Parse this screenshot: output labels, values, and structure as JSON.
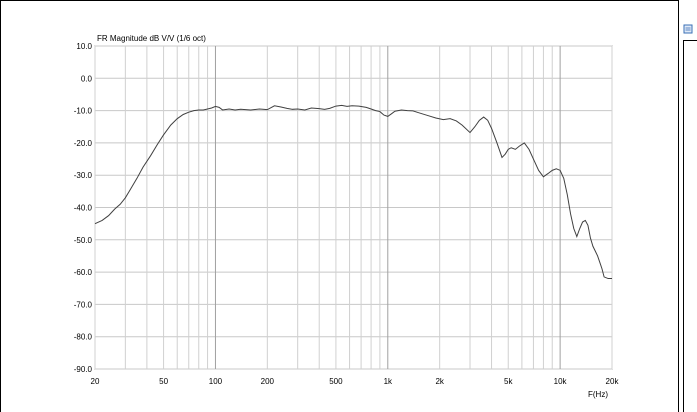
{
  "chart_data": {
    "type": "line",
    "title": "FR Magnitude dB V/V (1/6 oct)",
    "xlabel": "F(Hz)",
    "ylabel": "",
    "x_scale": "log",
    "xlim": [
      20,
      20000
    ],
    "ylim": [
      -90,
      10
    ],
    "grid": true,
    "x_ticks": [
      20,
      50,
      100,
      200,
      500,
      1000,
      2000,
      5000,
      10000,
      20000
    ],
    "x_tick_labels": [
      "20",
      "50",
      "100",
      "200",
      "500",
      "1k",
      "2k",
      "5k",
      "10k",
      "20k"
    ],
    "y_ticks": [
      10,
      0,
      -10,
      -20,
      -30,
      -40,
      -50,
      -60,
      -70,
      -80,
      -90
    ],
    "y_tick_labels": [
      "10.0",
      "0.0",
      "-10.0",
      "-20.0",
      "-30.0",
      "-40.0",
      "-50.0",
      "-60.0",
      "-70.0",
      "-80.0",
      "-90.0"
    ],
    "series": [
      {
        "color": "#404040",
        "x": [
          20,
          22,
          24,
          26,
          28,
          30,
          32,
          35,
          38,
          42,
          46,
          50,
          55,
          60,
          65,
          70,
          75,
          80,
          85,
          90,
          95,
          100,
          105,
          110,
          120,
          130,
          140,
          160,
          180,
          200,
          220,
          240,
          260,
          280,
          300,
          330,
          360,
          400,
          430,
          460,
          500,
          540,
          580,
          620,
          680,
          750,
          800,
          850,
          900,
          950,
          1000,
          1050,
          1100,
          1200,
          1300,
          1400,
          1500,
          1700,
          1900,
          2100,
          2300,
          2500,
          2700,
          3000,
          3200,
          3400,
          3600,
          3800,
          4000,
          4300,
          4600,
          4800,
          5000,
          5200,
          5500,
          5800,
          6200,
          6600,
          7000,
          7500,
          8000,
          8500,
          9000,
          9500,
          10000,
          10500,
          11000,
          11500,
          12000,
          12500,
          13000,
          13500,
          14000,
          14500,
          15000,
          15500,
          16000,
          16500,
          17000,
          17500,
          18000,
          19000,
          20000
        ],
        "y": [
          -45.0,
          -44.0,
          -42.5,
          -40.5,
          -39.0,
          -37.0,
          -34.5,
          -31.0,
          -27.5,
          -24.0,
          -20.5,
          -17.5,
          -14.5,
          -12.5,
          -11.2,
          -10.5,
          -10.0,
          -9.8,
          -9.8,
          -9.5,
          -9.2,
          -8.7,
          -9.0,
          -9.8,
          -9.5,
          -9.8,
          -9.6,
          -9.8,
          -9.5,
          -9.7,
          -8.5,
          -8.9,
          -9.3,
          -9.6,
          -9.5,
          -9.8,
          -9.2,
          -9.4,
          -9.6,
          -9.3,
          -8.6,
          -8.4,
          -8.7,
          -8.5,
          -8.6,
          -9.0,
          -9.5,
          -10.0,
          -10.3,
          -11.4,
          -11.8,
          -11.0,
          -10.2,
          -9.8,
          -10.0,
          -10.1,
          -10.6,
          -11.5,
          -12.3,
          -12.8,
          -12.5,
          -13.2,
          -14.5,
          -16.8,
          -15.0,
          -13.0,
          -12.0,
          -13.0,
          -15.5,
          -20.0,
          -24.5,
          -23.5,
          -22.0,
          -21.5,
          -22.0,
          -21.0,
          -20.0,
          -22.0,
          -25.0,
          -28.5,
          -30.5,
          -29.5,
          -28.5,
          -28.0,
          -28.5,
          -31.0,
          -36.0,
          -42.0,
          -46.5,
          -49.0,
          -46.5,
          -44.5,
          -44.0,
          -45.5,
          -49.5,
          -52.0,
          -53.5,
          -55.0,
          -57.0,
          -59.0,
          -61.5,
          -62.0,
          -62.0
        ]
      }
    ]
  },
  "side_panel": {
    "icon": "document-icon"
  }
}
